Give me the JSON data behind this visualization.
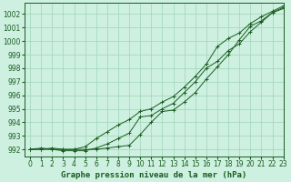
{
  "background_color": "#cdf0e0",
  "grid_color": "#a0d4b8",
  "line_color": "#1a5c20",
  "marker_color": "#1a5c20",
  "xlabel": "Graphe pression niveau de la mer (hPa)",
  "xlim": [
    -0.5,
    23
  ],
  "ylim": [
    991.5,
    1002.8
  ],
  "yticks": [
    992,
    993,
    994,
    995,
    996,
    997,
    998,
    999,
    1000,
    1001,
    1002
  ],
  "xticks": [
    0,
    1,
    2,
    3,
    4,
    5,
    6,
    7,
    8,
    9,
    10,
    11,
    12,
    13,
    14,
    15,
    16,
    17,
    18,
    19,
    20,
    21,
    22,
    23
  ],
  "line1_x": [
    0,
    1,
    2,
    3,
    4,
    5,
    6,
    7,
    8,
    9,
    10,
    11,
    12,
    13,
    14,
    15,
    16,
    17,
    18,
    19,
    20,
    21,
    22,
    23
  ],
  "line1_y": [
    992.0,
    992.0,
    992.1,
    992.0,
    992.0,
    992.0,
    992.0,
    992.1,
    992.2,
    992.3,
    993.1,
    994.0,
    994.8,
    994.9,
    995.5,
    996.2,
    997.2,
    998.1,
    999.0,
    1000.1,
    1001.1,
    1001.5,
    1002.1,
    1002.4
  ],
  "line2_x": [
    0,
    1,
    2,
    3,
    4,
    5,
    6,
    7,
    8,
    9,
    10,
    11,
    12,
    13,
    14,
    15,
    16,
    17,
    18,
    19,
    20,
    21,
    22,
    23
  ],
  "line2_y": [
    992.0,
    992.0,
    992.0,
    991.9,
    991.9,
    991.9,
    992.1,
    992.4,
    992.8,
    993.2,
    994.4,
    994.5,
    995.0,
    995.4,
    996.2,
    997.0,
    998.0,
    998.5,
    999.3,
    999.8,
    1000.7,
    1001.4,
    1002.1,
    1002.5
  ],
  "line3_x": [
    0,
    1,
    2,
    3,
    4,
    5,
    6,
    7,
    8,
    9,
    10,
    11,
    12,
    13,
    14,
    15,
    16,
    17,
    18,
    19,
    20,
    21,
    22,
    23
  ],
  "line3_y": [
    992.0,
    992.1,
    992.0,
    992.0,
    992.0,
    992.2,
    992.8,
    993.3,
    993.8,
    994.2,
    994.8,
    995.0,
    995.5,
    995.9,
    996.6,
    997.4,
    998.3,
    999.6,
    1000.2,
    1000.6,
    1001.3,
    1001.8,
    1002.2,
    1002.6
  ],
  "font_color": "#1a5c20",
  "tick_fontsize": 5.5,
  "xlabel_fontsize": 6.5
}
